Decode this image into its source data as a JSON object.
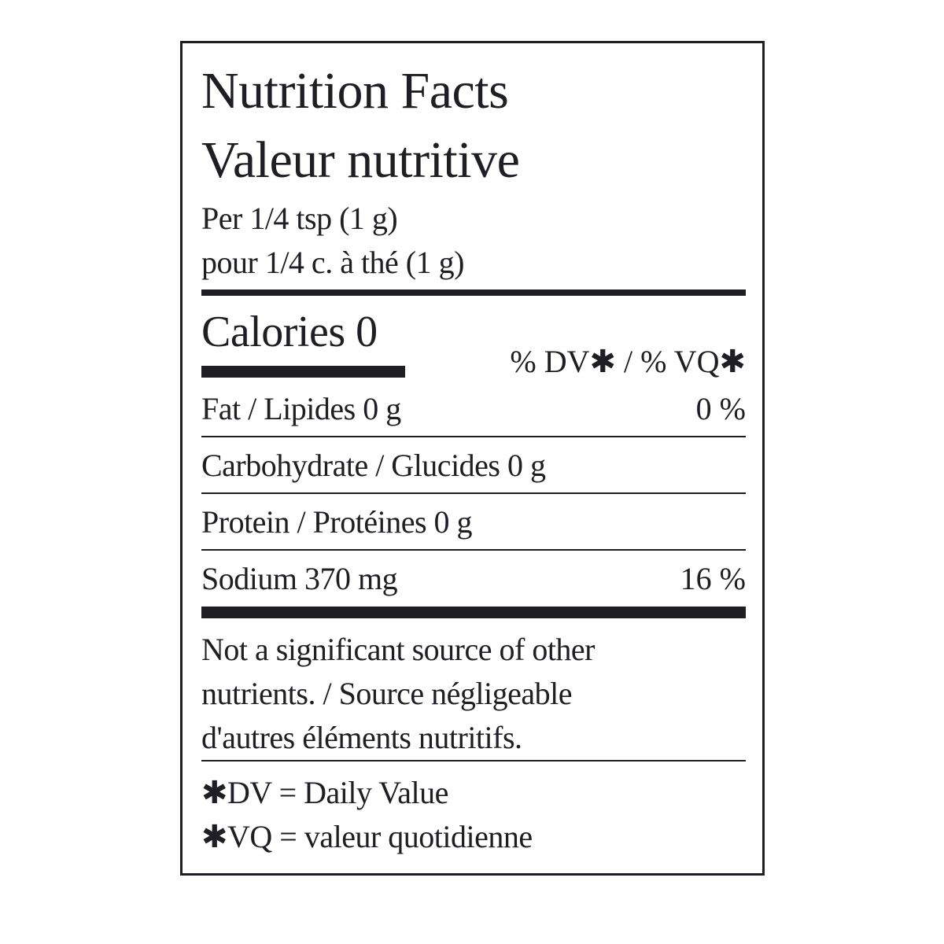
{
  "title_en": "Nutrition Facts",
  "title_fr": "Valeur nutritive",
  "serving_en": "Per 1/4 tsp (1 g)",
  "serving_fr": "pour 1/4 c. à thé (1 g)",
  "calories": "Calories 0",
  "dv_header": "% DV✱  / % VQ✱",
  "rows": [
    {
      "label": "Fat / Lipides 0 g",
      "dv": "0 %"
    },
    {
      "label": "Carbohydrate / Glucides 0 g",
      "dv": ""
    },
    {
      "label": "Protein / Protéines 0 g",
      "dv": ""
    },
    {
      "label": "Sodium 370 mg",
      "dv": "16 %"
    }
  ],
  "note": [
    "Not a significant source of other",
    "nutrients. / Source négligeable",
    "d'autres éléments nutritifs."
  ],
  "footnotes": [
    "✱DV = Daily Value",
    "✱VQ = valeur quotidienne"
  ]
}
